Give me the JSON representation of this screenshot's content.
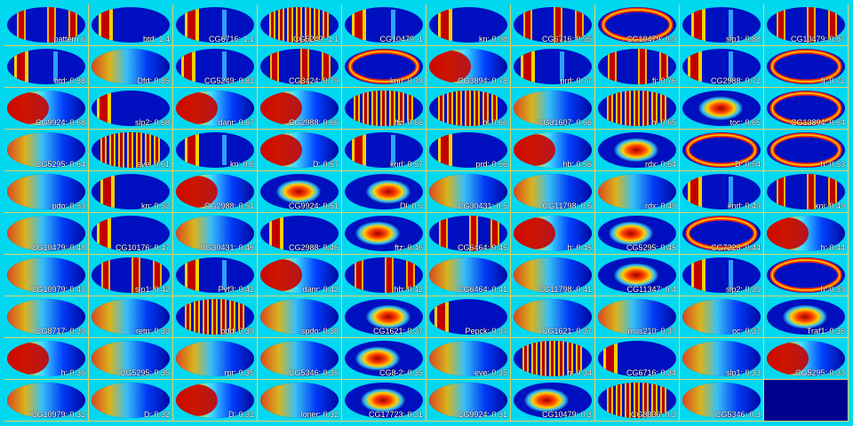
{
  "colors": {
    "background": "#00d8f0",
    "gridline": "#e8d060",
    "label": "#ffffff",
    "empty": "#00008f"
  },
  "panels": [
    {
      "label": "pattern 6",
      "motif": "stripes-sparse"
    },
    {
      "label": "btd: 1.4",
      "motif": "stripe-left"
    },
    {
      "label": "CG6716: 1.1",
      "motif": "stripe-left"
    },
    {
      "label": "CG5249: 1.1",
      "motif": "stripes-dense"
    },
    {
      "label": "CG10479: 1",
      "motif": "stripe-left"
    },
    {
      "label": "kn: 0.98",
      "motif": "stripe-left"
    },
    {
      "label": "CG6716: 0.95",
      "motif": "stripes-sparse"
    },
    {
      "label": "CG10479: 0.9",
      "motif": "ring"
    },
    {
      "label": "slp1: 0.88",
      "motif": "stripe-left"
    },
    {
      "label": "CG10479: 0.87",
      "motif": "stripes-sparse"
    },
    {
      "label": "btd: 0.88",
      "motif": "stripe-left"
    },
    {
      "label": "Dfd: 0.85",
      "motif": "anterior-diffuse"
    },
    {
      "label": "CG5249: 0.82",
      "motif": "stripe-left"
    },
    {
      "label": "CG3424: 0.79",
      "motif": "stripes-sparse"
    },
    {
      "label": "knrl: 0.78",
      "motif": "ring"
    },
    {
      "label": "CG3894: 0.78",
      "motif": "anterior-strong"
    },
    {
      "label": "prd: 0.77",
      "motif": "stripe-left"
    },
    {
      "label": "fj: 0.76",
      "motif": "stripes-sparse"
    },
    {
      "label": "CG2988: 0.72",
      "motif": "stripe-left"
    },
    {
      "label": "fj: 0.72",
      "motif": "ring"
    },
    {
      "label": "CG9924: 0.68",
      "motif": "anterior-strong"
    },
    {
      "label": "slp2: 0.68",
      "motif": "stripe-left"
    },
    {
      "label": "danr: 0.67",
      "motif": "anterior-strong"
    },
    {
      "label": "CG2988: 0.66",
      "motif": "anterior-strong"
    },
    {
      "label": "ftz: 0.66",
      "motif": "stripes-dense"
    },
    {
      "label": "h: 0.66",
      "motif": "stripes-dense"
    },
    {
      "label": "CG31607: 0.66",
      "motif": "anterior-diffuse"
    },
    {
      "label": "h: 0.65",
      "motif": "stripes-dense"
    },
    {
      "label": "toc: 0.65",
      "motif": "central-blob"
    },
    {
      "label": "CG13894: 0.64",
      "motif": "ring"
    },
    {
      "label": "CG5295: 0.64",
      "motif": "anterior-diffuse"
    },
    {
      "label": "eve: 0.61",
      "motif": "stripes-dense"
    },
    {
      "label": "kn: 0.6",
      "motif": "stripe-left"
    },
    {
      "label": "D: 0.57",
      "motif": "anterior-strong"
    },
    {
      "label": "knrl: 0.57",
      "motif": "stripe-left"
    },
    {
      "label": "prd: 0.56",
      "motif": "stripe-left"
    },
    {
      "label": "hb: 0.56",
      "motif": "anterior-strong"
    },
    {
      "label": "rdx: 0.54",
      "motif": "central-blob"
    },
    {
      "label": "D: 0.54",
      "motif": "ring"
    },
    {
      "label": "h: 0.53",
      "motif": "ring"
    },
    {
      "label": "pdo: 0.53",
      "motif": "anterior-diffuse"
    },
    {
      "label": "kn: 0.52",
      "motif": "stripe-left"
    },
    {
      "label": "CG2988: 0.51",
      "motif": "anterior-strong"
    },
    {
      "label": "CG9924: 0.51",
      "motif": "central-blob"
    },
    {
      "label": "Dl: 0.5",
      "motif": "central-blob"
    },
    {
      "label": "CG30431: 0.5",
      "motif": "anterior-diffuse"
    },
    {
      "label": "CG11798: 0.5",
      "motif": "anterior-diffuse"
    },
    {
      "label": "rdx: 0.49",
      "motif": "anterior-diffuse"
    },
    {
      "label": "knrl: 0.49",
      "motif": "stripe-left"
    },
    {
      "label": "kni: 0.49",
      "motif": "stripes-sparse"
    },
    {
      "label": "CG10479: 0.48",
      "motif": "anterior-diffuse"
    },
    {
      "label": "CG10176: 0.47",
      "motif": "stripe-left"
    },
    {
      "label": "CG30431: 0.46",
      "motif": "anterior-diffuse"
    },
    {
      "label": "CG2988: 0.46",
      "motif": "stripe-left"
    },
    {
      "label": "ftz: 0.46",
      "motif": "central-blob"
    },
    {
      "label": "CG6464: 0.45",
      "motif": "stripes-sparse"
    },
    {
      "label": "h: 0.45",
      "motif": "anterior-strong"
    },
    {
      "label": "CG5295: 0.45",
      "motif": "central-blob"
    },
    {
      "label": "CG7223: 0.44",
      "motif": "ring"
    },
    {
      "label": "h: 0.44",
      "motif": "anterior-strong"
    },
    {
      "label": "CG10979: 0.43",
      "motif": "anterior-diffuse"
    },
    {
      "label": "slp1: 0.42",
      "motif": "stripes-sparse"
    },
    {
      "label": "Pvf3: 0.42",
      "motif": "stripe-left"
    },
    {
      "label": "danr: 0.42",
      "motif": "anterior-strong"
    },
    {
      "label": "hb: 0.42",
      "motif": "stripes-sparse"
    },
    {
      "label": "CG6464: 0.41",
      "motif": "anterior-diffuse"
    },
    {
      "label": "CG11798: 0.41",
      "motif": "anterior-diffuse"
    },
    {
      "label": "CG11347: 0.4",
      "motif": "central-blob"
    },
    {
      "label": "slp2: 0.39",
      "motif": "stripe-left"
    },
    {
      "label": "h: 0.39",
      "motif": "ring"
    },
    {
      "label": "CG8717: 0.39",
      "motif": "anterior-diffuse"
    },
    {
      "label": "retn: 0.39",
      "motif": "anterior-diffuse"
    },
    {
      "label": "odd: 0.39",
      "motif": "stripes-dense"
    },
    {
      "label": "spdo: 0.38",
      "motif": "anterior-diffuse"
    },
    {
      "label": "CG1621: 0.37",
      "motif": "central-blob"
    },
    {
      "label": "Pepck: 0.37",
      "motif": "stripe-left"
    },
    {
      "label": "CG1621: 0.37",
      "motif": "anterior-diffuse"
    },
    {
      "label": "mus210: 0.37",
      "motif": "anterior-diffuse"
    },
    {
      "label": "oc: 0.37",
      "motif": "anterior-diffuse"
    },
    {
      "label": "Traf1: 0.36",
      "motif": "central-blob"
    },
    {
      "label": "h: 0.36",
      "motif": "anterior-strong"
    },
    {
      "label": "CG5295: 0.35",
      "motif": "anterior-diffuse"
    },
    {
      "label": "rpr: 0.35",
      "motif": "anterior-diffuse"
    },
    {
      "label": "CG5346: 0.35",
      "motif": "anterior-diffuse"
    },
    {
      "label": "CG8-2: 0.35",
      "motif": "central-blob"
    },
    {
      "label": "eve: 0.35",
      "motif": "anterior-diffuse"
    },
    {
      "label": "h: 0.34",
      "motif": "stripes-dense"
    },
    {
      "label": "CG6716: 0.34",
      "motif": "stripe-left"
    },
    {
      "label": "slp1: 0.33",
      "motif": "anterior-diffuse"
    },
    {
      "label": "CG5295: 0.33",
      "motif": "anterior-strong"
    },
    {
      "label": "CG10979: 0.32",
      "motif": "anterior-diffuse"
    },
    {
      "label": "D: 0.32",
      "motif": "anterior-diffuse"
    },
    {
      "label": "D: 0.32",
      "motif": "anterior-strong"
    },
    {
      "label": "loner: 0.32",
      "motif": "anterior-diffuse"
    },
    {
      "label": "CG17723: 0.31",
      "motif": "central-blob"
    },
    {
      "label": "CG9924: 0.31",
      "motif": "anterior-diffuse"
    },
    {
      "label": "CG10479: 0.3",
      "motif": "central-blob"
    },
    {
      "label": "CG8836: 0.3",
      "motif": "stripes-dense"
    },
    {
      "label": "CG5346: 0.3",
      "motif": "anterior-diffuse"
    },
    {
      "label": "",
      "motif": "empty"
    }
  ]
}
